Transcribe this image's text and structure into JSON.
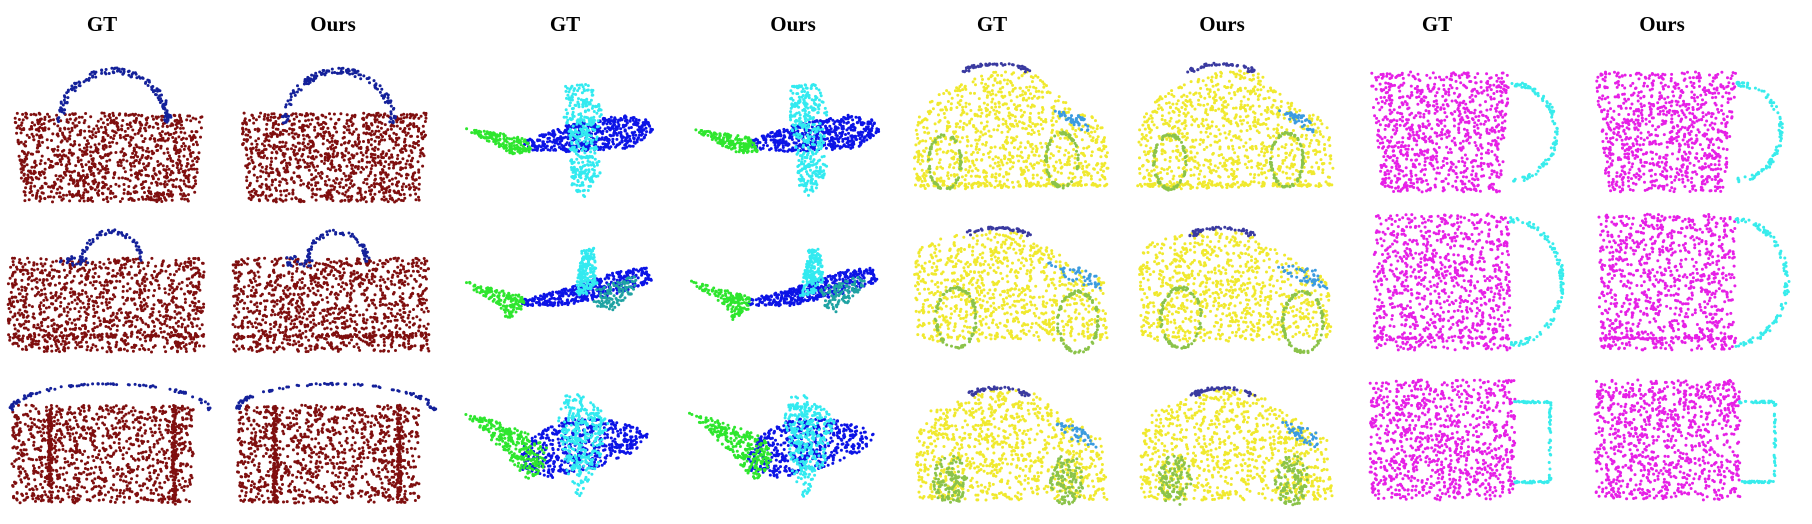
{
  "figure": {
    "headers": [
      "GT",
      "Ours",
      "GT",
      "Ours",
      "GT",
      "Ours",
      "GT",
      "Ours"
    ],
    "objects": [
      {
        "category": "bag",
        "parts": [
          {
            "part": "body",
            "color": "#7f0f0f"
          },
          {
            "part": "handle",
            "color": "#14219a"
          }
        ]
      },
      {
        "category": "airplane",
        "parts": [
          {
            "part": "fuselage",
            "color": "#0c14e6"
          },
          {
            "part": "wings",
            "color": "#33eaf0"
          },
          {
            "part": "tail",
            "color": "#2ee62e"
          },
          {
            "part": "tail-fin",
            "color": "#1fa3a3"
          }
        ]
      },
      {
        "category": "car",
        "parts": [
          {
            "part": "body",
            "color": "#f0e92e"
          },
          {
            "part": "wheels",
            "color": "#8bc34a"
          },
          {
            "part": "roof",
            "color": "#3a3aa0"
          },
          {
            "part": "hood",
            "color": "#3b9be0"
          }
        ]
      },
      {
        "category": "mug",
        "parts": [
          {
            "part": "body",
            "color": "#e620e6"
          },
          {
            "part": "handle",
            "color": "#38ecec"
          }
        ]
      }
    ],
    "rows": 3
  }
}
